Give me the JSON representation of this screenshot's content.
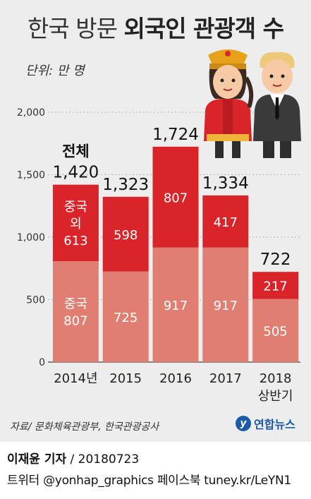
{
  "header": {
    "title_part1": "한국 방문",
    "title_part2": "외국인 관광객 수",
    "unit": "단위: 만 명"
  },
  "chart_data": {
    "type": "bar",
    "stacked": true,
    "categories": [
      "2014년",
      "2015",
      "2016",
      "2017",
      "2018"
    ],
    "category_sublabels": [
      "",
      "",
      "",
      "",
      "상반기"
    ],
    "series": [
      {
        "name": "중국 외",
        "values": [
          807,
          725,
          917,
          917,
          505
        ],
        "color": "#e07e72"
      },
      {
        "name": "중국",
        "values": [
          613,
          598,
          807,
          417,
          217
        ],
        "color": "#d9252a"
      }
    ],
    "totals": [
      1420,
      1323,
      1724,
      1334,
      722
    ],
    "total_labels": [
      "1,420",
      "1,323",
      "1,724",
      "1,334",
      "722"
    ],
    "first_total_caption": "전체",
    "inline_series_labels": [
      "중국",
      "중국\n외"
    ],
    "yticks": [
      0,
      500,
      1000,
      1500,
      2000
    ],
    "ytick_labels": [
      "0",
      "500",
      "1,000",
      "1,500",
      "2,000"
    ],
    "ylim": [
      0,
      2000
    ],
    "grid": true
  },
  "footer": {
    "source": "자료/ 문화체육관광부, 한국관광공사",
    "logo_text": "연합뉴스",
    "reporter": "이재윤 기자",
    "date": " / 20180723",
    "sns": "트위터 @yonhap_graphics  페이스북 tuney.kr/LeYN1"
  }
}
